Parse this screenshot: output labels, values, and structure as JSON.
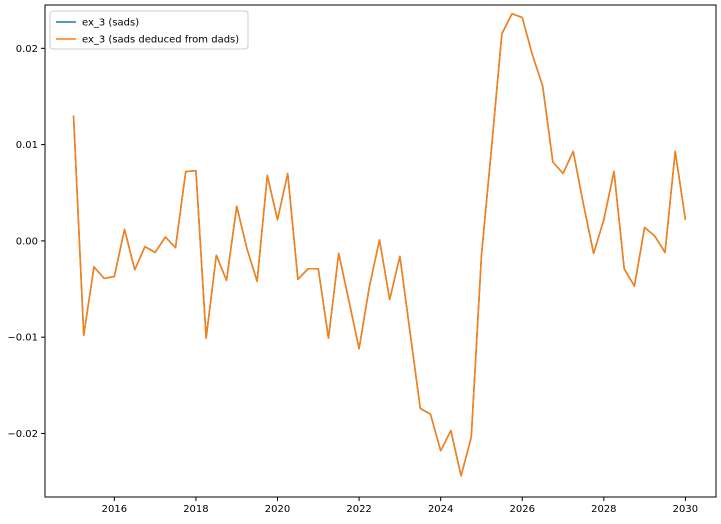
{
  "chart_data": {
    "type": "line",
    "title": "",
    "xlabel": "",
    "ylabel": "",
    "xlim": [
      2014.3,
      2030.75
    ],
    "ylim": [
      -0.0266,
      0.0245
    ],
    "x_ticks": [
      2016,
      2018,
      2020,
      2022,
      2024,
      2026,
      2028,
      2030
    ],
    "x_tick_labels": [
      "2016",
      "2018",
      "2020",
      "2022",
      "2024",
      "2026",
      "2028",
      "2030"
    ],
    "y_ticks": [
      -0.02,
      -0.01,
      0.0,
      0.01,
      0.02
    ],
    "y_tick_labels": [
      "−0.02",
      "−0.01",
      "0.00",
      "0.01",
      "0.02"
    ],
    "grid": false,
    "legend_position": "top-left",
    "x": [
      2015.0,
      2015.25,
      2015.5,
      2015.75,
      2016.0,
      2016.25,
      2016.5,
      2016.75,
      2017.0,
      2017.25,
      2017.5,
      2017.75,
      2018.0,
      2018.25,
      2018.5,
      2018.75,
      2019.0,
      2019.25,
      2019.5,
      2019.75,
      2020.0,
      2020.25,
      2020.5,
      2020.75,
      2021.0,
      2021.25,
      2021.5,
      2021.75,
      2022.0,
      2022.25,
      2022.5,
      2022.75,
      2023.0,
      2023.25,
      2023.5,
      2023.75,
      2024.0,
      2024.25,
      2024.5,
      2024.75,
      2025.0,
      2025.25,
      2025.5,
      2025.75,
      2026.0,
      2026.25,
      2026.5,
      2026.75,
      2027.0,
      2027.25,
      2027.5,
      2027.75,
      2028.0,
      2028.25,
      2028.5,
      2028.75,
      2029.0,
      2029.25,
      2029.5,
      2029.75,
      2030.0
    ],
    "series": [
      {
        "name": "ex_3 (sads)",
        "color": "#1f77b4",
        "values": [
          0.013,
          -0.0098,
          -0.0027,
          -0.0039,
          -0.0037,
          0.0012,
          -0.003,
          -0.0006,
          -0.0012,
          0.0004,
          -0.0007,
          0.0072,
          0.0073,
          -0.0101,
          -0.0015,
          -0.0041,
          0.0036,
          -0.0008,
          -0.0042,
          0.0068,
          0.0022,
          0.007,
          -0.004,
          -0.0029,
          -0.0029,
          -0.0101,
          -0.0013,
          -0.0062,
          -0.0112,
          -0.0048,
          0.0001,
          -0.0061,
          -0.0016,
          -0.0095,
          -0.0174,
          -0.018,
          -0.0218,
          -0.0197,
          -0.0244,
          -0.0204,
          -0.0015,
          0.0098,
          0.0215,
          0.0236,
          0.0232,
          0.0193,
          0.0161,
          0.0082,
          0.007,
          0.0093,
          0.0038,
          -0.0013,
          0.0022,
          0.0072,
          -0.0029,
          -0.0047,
          0.0014,
          0.0005,
          -0.0012,
          0.0093,
          0.0022
        ]
      },
      {
        "name": "ex_3 (sads deduced from dads)",
        "color": "#ff7f0e",
        "values": [
          0.013,
          -0.0098,
          -0.0027,
          -0.0039,
          -0.0037,
          0.0012,
          -0.003,
          -0.0006,
          -0.0012,
          0.0004,
          -0.0007,
          0.0072,
          0.0073,
          -0.0101,
          -0.0015,
          -0.0041,
          0.0036,
          -0.0008,
          -0.0042,
          0.0068,
          0.0022,
          0.007,
          -0.004,
          -0.0029,
          -0.0029,
          -0.0101,
          -0.0013,
          -0.0062,
          -0.0112,
          -0.0048,
          0.0001,
          -0.0061,
          -0.0016,
          -0.0095,
          -0.0174,
          -0.018,
          -0.0218,
          -0.0197,
          -0.0244,
          -0.0204,
          -0.0015,
          0.0098,
          0.0215,
          0.0236,
          0.0232,
          0.0193,
          0.0161,
          0.0082,
          0.007,
          0.0093,
          0.0038,
          -0.0013,
          0.0022,
          0.0072,
          -0.0029,
          -0.0047,
          0.0014,
          0.0005,
          -0.0012,
          0.0093,
          0.0022
        ]
      }
    ],
    "legend": [
      {
        "label": "ex_3 (sads)",
        "color": "#1f77b4"
      },
      {
        "label": "ex_3 (sads deduced from dads)",
        "color": "#ff7f0e"
      }
    ]
  }
}
